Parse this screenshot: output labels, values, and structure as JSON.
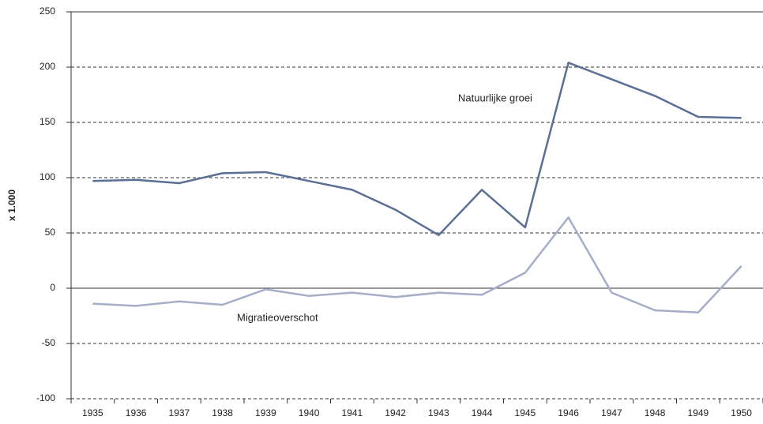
{
  "chart_data": {
    "type": "line",
    "y_label": "x 1.000",
    "categories": [
      "1935",
      "1936",
      "1937",
      "1938",
      "1939",
      "1940",
      "1941",
      "1942",
      "1943",
      "1944",
      "1945",
      "1946",
      "1947",
      "1948",
      "1949",
      "1950"
    ],
    "series": [
      {
        "name": "Natuurlijke groei",
        "color": "#5a6f94",
        "values": [
          97,
          98,
          95,
          104,
          105,
          97,
          89,
          71,
          48,
          89,
          55,
          204,
          189,
          174,
          155,
          154
        ]
      },
      {
        "name": "Migratieoverschot",
        "color": "#a5aec9",
        "values": [
          -14,
          -16,
          -12,
          -15,
          -1,
          -7,
          -4,
          -8,
          -4,
          -6,
          14,
          64,
          -4,
          -20,
          -22,
          20
        ]
      }
    ],
    "ylim": [
      -100,
      250
    ],
    "yticks": [
      -100,
      -50,
      0,
      50,
      100,
      150,
      200,
      250
    ],
    "grid": true
  }
}
